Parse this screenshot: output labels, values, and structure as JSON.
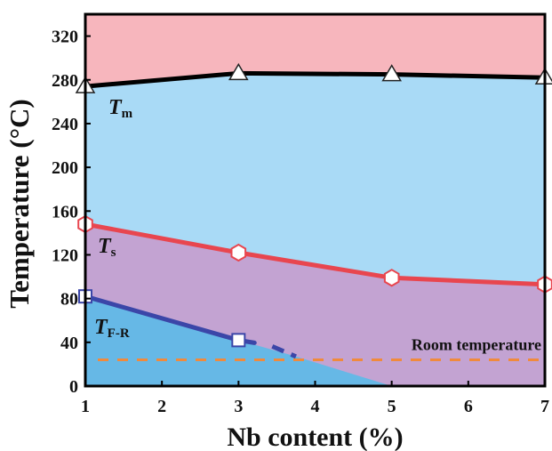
{
  "chart_data": {
    "type": "line",
    "xlabel": "Nb content (%)",
    "ylabel": "Temperature (°C)",
    "xlim": [
      1,
      7
    ],
    "ylim": [
      0,
      340
    ],
    "x_ticks": [
      1,
      2,
      3,
      4,
      5,
      6,
      7
    ],
    "y_ticks": [
      0,
      40,
      80,
      120,
      160,
      200,
      240,
      280,
      320
    ],
    "grid": false,
    "colors": {
      "melt_region": "#f7b6bd",
      "solid_region": "#a9daf6",
      "mid_region": "#c3a3d2",
      "low_region": "#66b8e6",
      "Tm_line": "#000000",
      "Ts_line": "#e8464f",
      "TFR_line": "#3b46a8",
      "room_temp_line": "#f08a3c"
    },
    "series": [
      {
        "name": "T",
        "subscript": "m",
        "marker": "triangle",
        "x": [
          1,
          3,
          5,
          7
        ],
        "y": [
          274,
          286,
          285,
          282
        ]
      },
      {
        "name": "T",
        "subscript": "s",
        "marker": "hexagon",
        "x": [
          1,
          3,
          5,
          7
        ],
        "y": [
          148,
          122,
          99,
          93
        ]
      },
      {
        "name": "T",
        "subscript": "F-R",
        "marker": "square",
        "x": [
          1,
          3
        ],
        "y": [
          82,
          42
        ],
        "extrapolated_to": {
          "x": 3.75,
          "y": 27
        }
      }
    ],
    "annotations": [
      {
        "text": "Room temperature",
        "y": 24
      }
    ]
  }
}
